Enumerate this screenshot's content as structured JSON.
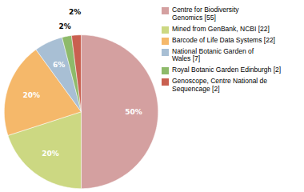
{
  "chart_data": {
    "type": "pie",
    "categories": [
      "Centre for Biodiversity\nGenomics [55]",
      "Mined from GenBank, NCBI [22]",
      "Barcode of Life Data Systems [22]",
      "National Botanic Garden of\nWales [7]",
      "Royal Botanic Garden Edinburgh [2]",
      "Genoscope, Centre National de\nSequencage [2]"
    ],
    "values": [
      50,
      20,
      20,
      6,
      2,
      2
    ],
    "value_labels": [
      "50%",
      "20%",
      "20%",
      "6%",
      "2%",
      "2%"
    ],
    "colors": [
      "#d4a0a0",
      "#ccd882",
      "#f5b86a",
      "#a8bfd4",
      "#8eba6a",
      "#c96050"
    ],
    "data_labels": true,
    "legend": "right"
  }
}
